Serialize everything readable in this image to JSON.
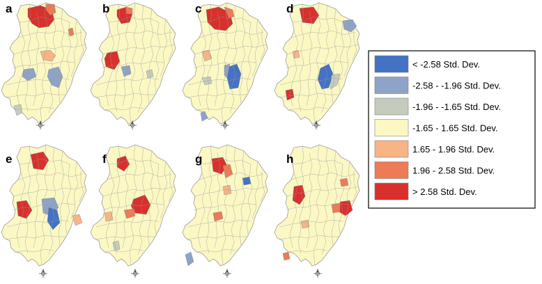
{
  "panels": [
    {
      "letter": "a",
      "regions": [
        {
          "name": "north-hotspot",
          "class": "gt_2_58"
        },
        {
          "name": "north-hotspot-edge",
          "class": "c196_258"
        },
        {
          "name": "northeast-patch",
          "class": "c196_258"
        },
        {
          "name": "center-warm",
          "class": "c165_196"
        },
        {
          "name": "center-cold-left",
          "class": "cm258_m196"
        },
        {
          "name": "center-cold-right",
          "class": "cm258_m196"
        },
        {
          "name": "south-cold",
          "class": "cm196_m165"
        }
      ]
    },
    {
      "letter": "b",
      "regions": [
        {
          "name": "north-hotspot",
          "class": "gt_2_58"
        },
        {
          "name": "north-hotspot-edge",
          "class": "c196_258"
        },
        {
          "name": "west-hotspot",
          "class": "gt_2_58"
        },
        {
          "name": "center-cold",
          "class": "cm258_m196"
        },
        {
          "name": "east-cold",
          "class": "cm196_m165"
        }
      ]
    },
    {
      "letter": "c",
      "regions": [
        {
          "name": "north-hotspot",
          "class": "gt_2_58"
        },
        {
          "name": "north-hotspot-edge",
          "class": "c196_258"
        },
        {
          "name": "west-warm",
          "class": "c165_196"
        },
        {
          "name": "center-coldspot",
          "class": "lt_m2_58"
        },
        {
          "name": "center-cold-ring",
          "class": "cm258_m196"
        },
        {
          "name": "west-cold",
          "class": "cm196_m165"
        },
        {
          "name": "south-cold",
          "class": "cm258_m196"
        }
      ]
    },
    {
      "letter": "d",
      "regions": [
        {
          "name": "north-hotspot",
          "class": "gt_2_58"
        },
        {
          "name": "northeast-cold",
          "class": "cm258_m196"
        },
        {
          "name": "center-coldspot",
          "class": "lt_m2_58"
        },
        {
          "name": "center-cold-ring",
          "class": "cm196_m165"
        },
        {
          "name": "southwest-hotspot",
          "class": "gt_2_58"
        },
        {
          "name": "west-warm",
          "class": "c165_196"
        }
      ]
    },
    {
      "letter": "e",
      "regions": [
        {
          "name": "north-hotspot",
          "class": "gt_2_58"
        },
        {
          "name": "west-hotspot",
          "class": "gt_2_58"
        },
        {
          "name": "center-cold-ring",
          "class": "cm258_m196"
        },
        {
          "name": "center-coldspot",
          "class": "lt_m2_58"
        },
        {
          "name": "east-warm",
          "class": "c165_196"
        }
      ]
    },
    {
      "letter": "f",
      "regions": [
        {
          "name": "north-hotspot",
          "class": "gt_2_58"
        },
        {
          "name": "center-hotspot",
          "class": "gt_2_58"
        },
        {
          "name": "center-hot-ring",
          "class": "c196_258"
        },
        {
          "name": "west-warm",
          "class": "c165_196"
        },
        {
          "name": "south-cold",
          "class": "cm196_m165"
        }
      ]
    },
    {
      "letter": "g",
      "regions": [
        {
          "name": "north-hotspot",
          "class": "gt_2_58"
        },
        {
          "name": "north-hot-ring",
          "class": "c196_258"
        },
        {
          "name": "northeast-coldspot",
          "class": "lt_m2_58"
        },
        {
          "name": "center-warm",
          "class": "c196_258"
        },
        {
          "name": "east-warm",
          "class": "c165_196"
        },
        {
          "name": "south-cold",
          "class": "cm258_m196"
        }
      ]
    },
    {
      "letter": "h",
      "regions": [
        {
          "name": "west-hotspot",
          "class": "gt_2_58"
        },
        {
          "name": "east-hotspot",
          "class": "gt_2_58"
        },
        {
          "name": "east-hot-ring",
          "class": "c196_258"
        },
        {
          "name": "northeast-warm",
          "class": "c196_258"
        },
        {
          "name": "center-warm",
          "class": "c165_196"
        },
        {
          "name": "southwest-warm",
          "class": "c196_258"
        }
      ]
    }
  ],
  "legend": {
    "items": [
      {
        "label": "< -2.58 Std. Dev.",
        "color": "#4472c4",
        "key": "lt_m2_58"
      },
      {
        "label": "-2.58 - -1.96 Std. Dev.",
        "color": "#8ea3c8",
        "key": "cm258_m196"
      },
      {
        "label": "-1.96 - -1.65 Std. Dev.",
        "color": "#c5ccbe",
        "key": "cm196_m165"
      },
      {
        "label": "-1.65 - 1.65 Std. Dev.",
        "color": "#fbf8c4",
        "key": "c165_165"
      },
      {
        "label": "1.65 - 1.96 Std. Dev.",
        "color": "#f8b486",
        "key": "c165_196"
      },
      {
        "label": "1.96 - 2.58 Std. Dev.",
        "color": "#ee7a56",
        "key": "c196_258"
      },
      {
        "label": "> 2.58 Std. Dev.",
        "color": "#d8302d",
        "key": "gt_2_58"
      }
    ]
  },
  "colors": {
    "map_base": "#fbf8c4",
    "map_border": "#9b9b9b",
    "compass": "#555555"
  },
  "icons": {
    "compass": "compass-rose-icon"
  }
}
